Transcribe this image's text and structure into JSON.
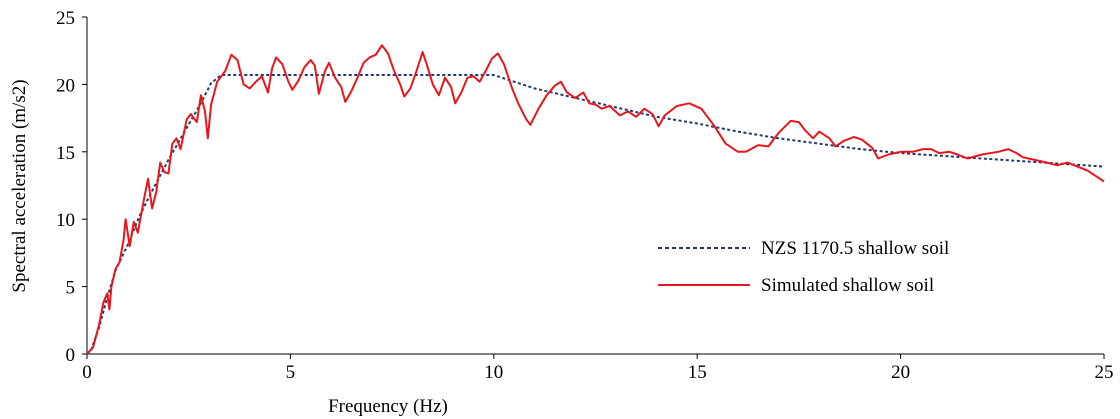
{
  "chart_data": {
    "type": "line",
    "xlabel": "Frequency (Hz)",
    "ylabel": "Spectral acceleration (m/s2)",
    "xlim": [
      0,
      25
    ],
    "ylim": [
      0,
      25
    ],
    "xticks": [
      0,
      5,
      10,
      15,
      20,
      25
    ],
    "yticks": [
      0,
      5,
      10,
      15,
      20,
      25
    ],
    "grid": false,
    "legend_position": "right-center",
    "series": [
      {
        "name": "NZS 1170.5 shallow soil",
        "style": "dotted",
        "color": "#1f3a6e",
        "points": [
          [
            0,
            0
          ],
          [
            0.1,
            0.3
          ],
          [
            0.3,
            2.0
          ],
          [
            0.5,
            4.2
          ],
          [
            0.7,
            6.2
          ],
          [
            1.0,
            8.1
          ],
          [
            1.3,
            10.3
          ],
          [
            1.6,
            12.1
          ],
          [
            2.0,
            14.4
          ],
          [
            2.4,
            16.5
          ],
          [
            2.8,
            18.6
          ],
          [
            3.05,
            20.1
          ],
          [
            3.3,
            20.7
          ],
          [
            4.0,
            20.7
          ],
          [
            5.0,
            20.7
          ],
          [
            6.0,
            20.7
          ],
          [
            7.0,
            20.7
          ],
          [
            8.0,
            20.7
          ],
          [
            9.0,
            20.7
          ],
          [
            10.0,
            20.7
          ],
          [
            10.5,
            20.2
          ],
          [
            11.0,
            19.7
          ],
          [
            12.0,
            19.0
          ],
          [
            13.0,
            18.3
          ],
          [
            14.0,
            17.6
          ],
          [
            15.0,
            17.1
          ],
          [
            16.0,
            16.5
          ],
          [
            17.0,
            16.0
          ],
          [
            18.0,
            15.6
          ],
          [
            19.0,
            15.2
          ],
          [
            20.0,
            14.9
          ],
          [
            21.0,
            14.7
          ],
          [
            22.0,
            14.5
          ],
          [
            23.0,
            14.3
          ],
          [
            24.0,
            14.1
          ],
          [
            25.0,
            13.9
          ]
        ]
      },
      {
        "name": "Simulated shallow soil",
        "style": "solid",
        "color": "#e8151b",
        "points": [
          [
            0,
            0
          ],
          [
            0.15,
            0.5
          ],
          [
            0.3,
            2.2
          ],
          [
            0.4,
            3.8
          ],
          [
            0.5,
            4.5
          ],
          [
            0.55,
            3.3
          ],
          [
            0.6,
            5.0
          ],
          [
            0.7,
            6.3
          ],
          [
            0.8,
            6.8
          ],
          [
            0.9,
            8.5
          ],
          [
            0.95,
            10.0
          ],
          [
            1.05,
            8.0
          ],
          [
            1.15,
            9.8
          ],
          [
            1.25,
            9.0
          ],
          [
            1.4,
            11.5
          ],
          [
            1.5,
            13.0
          ],
          [
            1.6,
            10.8
          ],
          [
            1.7,
            12.0
          ],
          [
            1.8,
            14.2
          ],
          [
            1.9,
            13.5
          ],
          [
            2.0,
            13.4
          ],
          [
            2.1,
            15.6
          ],
          [
            2.2,
            16.0
          ],
          [
            2.3,
            15.2
          ],
          [
            2.45,
            17.4
          ],
          [
            2.55,
            17.8
          ],
          [
            2.7,
            17.2
          ],
          [
            2.8,
            19.2
          ],
          [
            2.9,
            18.0
          ],
          [
            2.97,
            16.0
          ],
          [
            3.05,
            18.5
          ],
          [
            3.2,
            20.2
          ],
          [
            3.4,
            21.0
          ],
          [
            3.55,
            22.2
          ],
          [
            3.7,
            21.8
          ],
          [
            3.85,
            20.0
          ],
          [
            4.0,
            19.7
          ],
          [
            4.15,
            20.2
          ],
          [
            4.3,
            20.6
          ],
          [
            4.45,
            19.4
          ],
          [
            4.55,
            21.2
          ],
          [
            4.65,
            22.0
          ],
          [
            4.8,
            21.5
          ],
          [
            4.95,
            20.2
          ],
          [
            5.05,
            19.6
          ],
          [
            5.2,
            20.3
          ],
          [
            5.35,
            21.3
          ],
          [
            5.5,
            21.8
          ],
          [
            5.6,
            21.4
          ],
          [
            5.7,
            19.3
          ],
          [
            5.85,
            21.0
          ],
          [
            5.95,
            21.6
          ],
          [
            6.1,
            20.5
          ],
          [
            6.25,
            19.8
          ],
          [
            6.35,
            18.7
          ],
          [
            6.5,
            19.5
          ],
          [
            6.65,
            20.5
          ],
          [
            6.8,
            21.6
          ],
          [
            6.95,
            22.0
          ],
          [
            7.1,
            22.2
          ],
          [
            7.25,
            22.9
          ],
          [
            7.4,
            22.3
          ],
          [
            7.55,
            21.0
          ],
          [
            7.7,
            20.0
          ],
          [
            7.8,
            19.1
          ],
          [
            7.95,
            19.7
          ],
          [
            8.1,
            21.0
          ],
          [
            8.25,
            22.4
          ],
          [
            8.35,
            21.5
          ],
          [
            8.5,
            20.0
          ],
          [
            8.65,
            19.2
          ],
          [
            8.8,
            20.5
          ],
          [
            8.95,
            19.8
          ],
          [
            9.05,
            18.6
          ],
          [
            9.2,
            19.4
          ],
          [
            9.35,
            20.5
          ],
          [
            9.5,
            20.6
          ],
          [
            9.65,
            20.2
          ],
          [
            9.8,
            21.0
          ],
          [
            9.95,
            21.9
          ],
          [
            10.1,
            22.3
          ],
          [
            10.25,
            21.5
          ],
          [
            10.45,
            19.7
          ],
          [
            10.6,
            18.6
          ],
          [
            10.8,
            17.4
          ],
          [
            10.9,
            17.0
          ],
          [
            11.1,
            18.2
          ],
          [
            11.3,
            19.2
          ],
          [
            11.5,
            19.9
          ],
          [
            11.65,
            20.2
          ],
          [
            11.8,
            19.4
          ],
          [
            12.0,
            19.0
          ],
          [
            12.2,
            19.4
          ],
          [
            12.35,
            18.6
          ],
          [
            12.5,
            18.5
          ],
          [
            12.65,
            18.2
          ],
          [
            12.85,
            18.4
          ],
          [
            13.1,
            17.7
          ],
          [
            13.3,
            18.0
          ],
          [
            13.5,
            17.6
          ],
          [
            13.7,
            18.2
          ],
          [
            13.9,
            17.8
          ],
          [
            14.05,
            16.9
          ],
          [
            14.2,
            17.7
          ],
          [
            14.5,
            18.4
          ],
          [
            14.8,
            18.6
          ],
          [
            15.1,
            18.2
          ],
          [
            15.4,
            17.0
          ],
          [
            15.7,
            15.6
          ],
          [
            16.0,
            15.0
          ],
          [
            16.2,
            15.0
          ],
          [
            16.5,
            15.5
          ],
          [
            16.75,
            15.4
          ],
          [
            17.0,
            16.4
          ],
          [
            17.3,
            17.3
          ],
          [
            17.5,
            17.2
          ],
          [
            17.65,
            16.6
          ],
          [
            17.85,
            16.0
          ],
          [
            18.0,
            16.5
          ],
          [
            18.25,
            16.0
          ],
          [
            18.4,
            15.4
          ],
          [
            18.6,
            15.8
          ],
          [
            18.85,
            16.1
          ],
          [
            19.05,
            15.9
          ],
          [
            19.3,
            15.3
          ],
          [
            19.45,
            14.5
          ],
          [
            19.7,
            14.8
          ],
          [
            20.0,
            15.0
          ],
          [
            20.3,
            15.0
          ],
          [
            20.55,
            15.2
          ],
          [
            20.75,
            15.2
          ],
          [
            20.95,
            14.9
          ],
          [
            21.2,
            15.0
          ],
          [
            21.4,
            14.8
          ],
          [
            21.65,
            14.5
          ],
          [
            22.0,
            14.8
          ],
          [
            22.4,
            15.0
          ],
          [
            22.65,
            15.2
          ],
          [
            22.85,
            14.9
          ],
          [
            23.0,
            14.6
          ],
          [
            23.3,
            14.4
          ],
          [
            23.6,
            14.2
          ],
          [
            23.85,
            14.0
          ],
          [
            24.1,
            14.2
          ],
          [
            24.35,
            13.9
          ],
          [
            24.6,
            13.6
          ],
          [
            24.85,
            13.1
          ],
          [
            25.0,
            12.8
          ]
        ]
      }
    ]
  }
}
